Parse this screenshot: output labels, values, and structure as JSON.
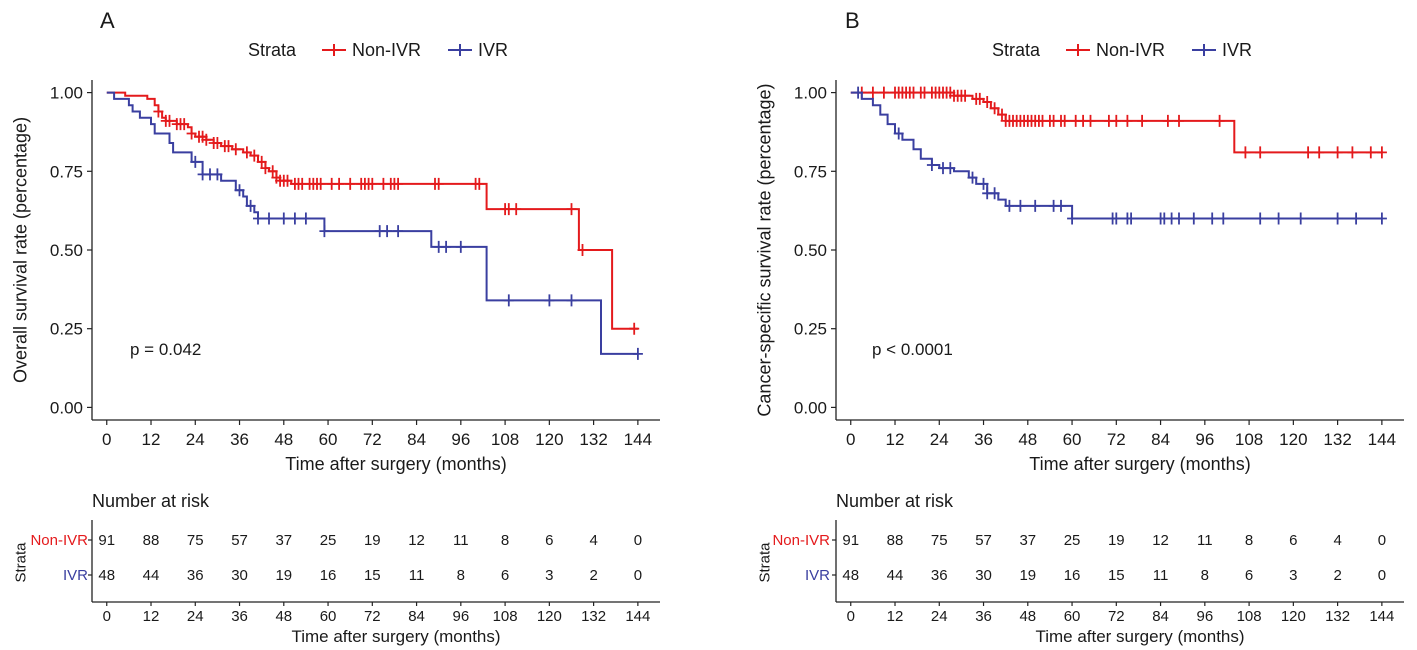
{
  "colors": {
    "non_ivr": "#e41a1c",
    "ivr": "#3a3fa0",
    "axis": "#222222"
  },
  "chart_data": [
    {
      "type": "line",
      "panel": "A",
      "legend_title": "Strata",
      "legend_entries": [
        "Non-IVR",
        "IVR"
      ],
      "legend_position": "top",
      "xlabel": "Time after surgery (months)",
      "ylabel": "Overall survival rate (percentage)",
      "xticks": [
        0,
        12,
        24,
        36,
        48,
        60,
        72,
        84,
        96,
        108,
        120,
        132,
        144
      ],
      "yticks": [
        0.0,
        0.25,
        0.5,
        0.75,
        1.0
      ],
      "ytick_labels": [
        "0.00",
        "0.25",
        "0.50",
        "0.75",
        "1.00"
      ],
      "xlim": [
        -4,
        150
      ],
      "ylim": [
        -0.04,
        1.04
      ],
      "annotation": "p = 0.042",
      "series": [
        {
          "name": "Non-IVR",
          "steps": [
            [
              0,
              1.0
            ],
            [
              5,
              0.99
            ],
            [
              11,
              0.98
            ],
            [
              13,
              0.96
            ],
            [
              14,
              0.94
            ],
            [
              15,
              0.92
            ],
            [
              16,
              0.91
            ],
            [
              19,
              0.9
            ],
            [
              22,
              0.89
            ],
            [
              23,
              0.87
            ],
            [
              24,
              0.86
            ],
            [
              27,
              0.85
            ],
            [
              29,
              0.84
            ],
            [
              31,
              0.83
            ],
            [
              34,
              0.82
            ],
            [
              37,
              0.81
            ],
            [
              39,
              0.8
            ],
            [
              41,
              0.78
            ],
            [
              43,
              0.76
            ],
            [
              44,
              0.75
            ],
            [
              46,
              0.73
            ],
            [
              47,
              0.72
            ],
            [
              50,
              0.71
            ],
            [
              103,
              0.63
            ],
            [
              128,
              0.5
            ],
            [
              137,
              0.25
            ],
            [
              144,
              0.25
            ]
          ],
          "censor": [
            14,
            16,
            17,
            19,
            20,
            21,
            23,
            25,
            26,
            27,
            29,
            30,
            32,
            33,
            35,
            38,
            40,
            42,
            43,
            45,
            46,
            47,
            48,
            49,
            51,
            52,
            53,
            55,
            56,
            57,
            58,
            61,
            63,
            66,
            69,
            70,
            71,
            72,
            75,
            77,
            78,
            79,
            89,
            90,
            100,
            101,
            108,
            109,
            111,
            126,
            129,
            143
          ]
        },
        {
          "name": "IVR",
          "steps": [
            [
              0,
              1.0
            ],
            [
              2,
              0.98
            ],
            [
              6,
              0.96
            ],
            [
              7,
              0.94
            ],
            [
              9,
              0.92
            ],
            [
              12,
              0.9
            ],
            [
              13,
              0.87
            ],
            [
              17,
              0.84
            ],
            [
              18,
              0.81
            ],
            [
              23,
              0.78
            ],
            [
              26,
              0.74
            ],
            [
              31,
              0.72
            ],
            [
              35,
              0.69
            ],
            [
              37,
              0.67
            ],
            [
              38,
              0.64
            ],
            [
              40,
              0.62
            ],
            [
              41,
              0.6
            ],
            [
              59,
              0.56
            ],
            [
              88,
              0.51
            ],
            [
              103,
              0.34
            ],
            [
              134,
              0.17
            ],
            [
              144,
              0.17
            ]
          ],
          "censor": [
            24,
            26,
            28,
            30,
            36,
            39,
            41,
            44,
            48,
            51,
            54,
            59,
            74,
            76,
            79,
            90,
            92,
            96,
            109,
            120,
            126,
            144
          ]
        }
      ],
      "risk_table": {
        "title": "Number at risk",
        "strata_label": "Strata",
        "times": [
          0,
          12,
          24,
          36,
          48,
          60,
          72,
          84,
          96,
          108,
          120,
          132,
          144
        ],
        "xlabel": "Time after surgery (months)",
        "rows": [
          {
            "label": "Non-IVR",
            "values": [
              91,
              88,
              75,
              57,
              37,
              25,
              19,
              12,
              11,
              8,
              6,
              4,
              0
            ]
          },
          {
            "label": "IVR",
            "values": [
              48,
              44,
              36,
              30,
              19,
              16,
              15,
              11,
              8,
              6,
              3,
              2,
              0
            ]
          }
        ]
      }
    },
    {
      "type": "line",
      "panel": "B",
      "legend_title": "Strata",
      "legend_entries": [
        "Non-IVR",
        "IVR"
      ],
      "legend_position": "top",
      "xlabel": "Time after surgery (months)",
      "ylabel": "Cancer-specific survival rate (percentage)",
      "xticks": [
        0,
        12,
        24,
        36,
        48,
        60,
        72,
        84,
        96,
        108,
        120,
        132,
        144
      ],
      "yticks": [
        0.0,
        0.25,
        0.5,
        0.75,
        1.0
      ],
      "ytick_labels": [
        "0.00",
        "0.25",
        "0.50",
        "0.75",
        "1.00"
      ],
      "xlim": [
        -4,
        150
      ],
      "ylim": [
        -0.04,
        1.04
      ],
      "annotation": "p < 0.0001",
      "series": [
        {
          "name": "Non-IVR",
          "steps": [
            [
              0,
              1.0
            ],
            [
              28,
              0.99
            ],
            [
              33,
              0.98
            ],
            [
              36,
              0.97
            ],
            [
              38,
              0.95
            ],
            [
              40,
              0.93
            ],
            [
              42,
              0.91
            ],
            [
              104,
              0.81
            ],
            [
              144,
              0.81
            ]
          ],
          "censor": [
            3,
            6,
            9,
            12,
            13,
            14,
            15,
            16,
            17,
            19,
            20,
            22,
            23,
            24,
            25,
            26,
            27,
            28,
            29,
            30,
            31,
            34,
            35,
            37,
            39,
            41,
            42,
            43,
            44,
            45,
            46,
            47,
            48,
            49,
            50,
            51,
            52,
            54,
            55,
            57,
            58,
            61,
            63,
            65,
            70,
            72,
            75,
            79,
            86,
            89,
            100,
            107,
            111,
            124,
            127,
            132,
            136,
            141,
            144
          ]
        },
        {
          "name": "IVR",
          "steps": [
            [
              0,
              1.0
            ],
            [
              3,
              0.98
            ],
            [
              6,
              0.96
            ],
            [
              8,
              0.93
            ],
            [
              10,
              0.9
            ],
            [
              12,
              0.87
            ],
            [
              14,
              0.85
            ],
            [
              17,
              0.82
            ],
            [
              19,
              0.79
            ],
            [
              22,
              0.77
            ],
            [
              24,
              0.76
            ],
            [
              28,
              0.75
            ],
            [
              32,
              0.73
            ],
            [
              34,
              0.71
            ],
            [
              37,
              0.68
            ],
            [
              40,
              0.66
            ],
            [
              42,
              0.64
            ],
            [
              60,
              0.6
            ],
            [
              144,
              0.6
            ]
          ],
          "censor": [
            2,
            13,
            22,
            25,
            27,
            33,
            36,
            37,
            39,
            43,
            46,
            50,
            55,
            57,
            60,
            71,
            72,
            75,
            76,
            84,
            85,
            87,
            89,
            93,
            98,
            101,
            111,
            116,
            122,
            132,
            137,
            144
          ]
        }
      ],
      "risk_table": {
        "title": "Number at risk",
        "strata_label": "Strata",
        "times": [
          0,
          12,
          24,
          36,
          48,
          60,
          72,
          84,
          96,
          108,
          120,
          132,
          144
        ],
        "xlabel": "Time after surgery (months)",
        "rows": [
          {
            "label": "Non-IVR",
            "values": [
              91,
              88,
              75,
              57,
              37,
              25,
              19,
              12,
              11,
              8,
              6,
              4,
              0
            ]
          },
          {
            "label": "IVR",
            "values": [
              48,
              44,
              36,
              30,
              19,
              16,
              15,
              11,
              8,
              6,
              3,
              2,
              0
            ]
          }
        ]
      }
    }
  ]
}
